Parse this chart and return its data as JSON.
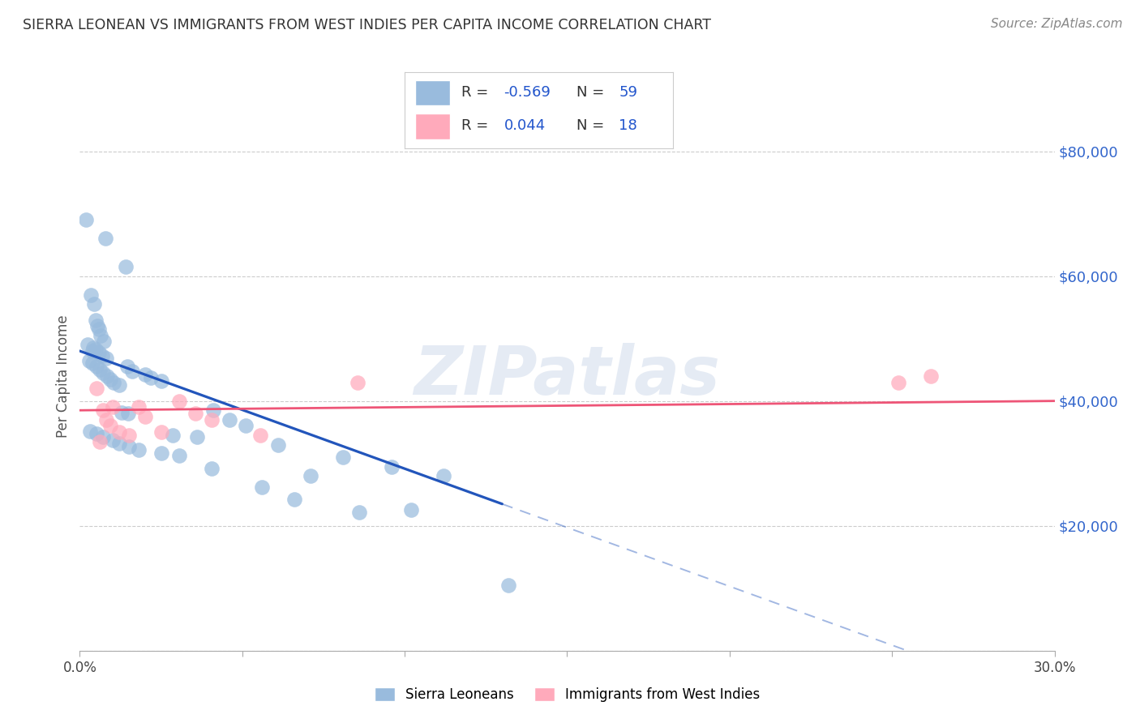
{
  "title": "SIERRA LEONEAN VS IMMIGRANTS FROM WEST INDIES PER CAPITA INCOME CORRELATION CHART",
  "source": "Source: ZipAtlas.com",
  "ylabel": "Per Capita Income",
  "xlim": [
    0.0,
    30.0
  ],
  "ylim": [
    0,
    88000
  ],
  "yticks": [
    0,
    20000,
    40000,
    60000,
    80000
  ],
  "ytick_labels": [
    "",
    "$20,000",
    "$40,000",
    "$60,000",
    "$80,000"
  ],
  "background_color": "#ffffff",
  "watermark_text": "ZIPatlas",
  "blue_color": "#99bbdd",
  "pink_color": "#ffaabb",
  "trendline_blue": "#2255bb",
  "trendline_pink": "#ee5577",
  "grid_color": "#cccccc",
  "blue_scatter_x": [
    0.2,
    0.8,
    1.4,
    0.35,
    0.45,
    0.5,
    0.55,
    0.6,
    0.65,
    0.75,
    0.25,
    0.42,
    0.48,
    0.38,
    0.58,
    0.68,
    0.82,
    0.3,
    0.4,
    0.52,
    0.62,
    0.72,
    0.85,
    0.95,
    1.05,
    1.2,
    1.45,
    1.62,
    2.02,
    2.18,
    2.52,
    1.28,
    1.48,
    2.85,
    3.6,
    4.1,
    4.6,
    5.1,
    6.1,
    7.1,
    8.1,
    9.6,
    11.2,
    0.32,
    0.52,
    0.72,
    1.02,
    1.22,
    1.52,
    1.82,
    2.52,
    3.05,
    4.05,
    5.6,
    6.6,
    8.6,
    10.2,
    13.2
  ],
  "blue_scatter_y": [
    69000,
    66000,
    61500,
    57000,
    55500,
    53000,
    52000,
    51500,
    50500,
    49500,
    49000,
    48500,
    48200,
    48000,
    47800,
    47200,
    46800,
    46500,
    46000,
    45500,
    45000,
    44500,
    44000,
    43500,
    43000,
    42500,
    45500,
    44800,
    44200,
    43700,
    43200,
    38200,
    38000,
    34500,
    34200,
    38500,
    37000,
    36000,
    33000,
    28000,
    31000,
    29500,
    28000,
    35200,
    34700,
    34200,
    33700,
    33200,
    32700,
    32200,
    31700,
    31200,
    29200,
    26200,
    24200,
    22200,
    22500,
    10500
  ],
  "pink_scatter_x": [
    0.52,
    0.72,
    0.82,
    1.02,
    1.22,
    1.52,
    1.82,
    2.02,
    2.52,
    3.05,
    3.55,
    4.05,
    5.55,
    8.55,
    25.2,
    26.2,
    0.62,
    0.95
  ],
  "pink_scatter_y": [
    42000,
    38500,
    37000,
    39000,
    35000,
    34500,
    39000,
    37500,
    35000,
    40000,
    38000,
    37000,
    34500,
    43000,
    43000,
    44000,
    33500,
    36000
  ],
  "blue_trendline_x0": 0.0,
  "blue_trendline_y0": 48000,
  "blue_trendline_x1": 13.0,
  "blue_trendline_y1": 23500,
  "blue_solid_end": 13.0,
  "blue_dashed_end": 30.0,
  "pink_trendline_y_intercept": 38500,
  "pink_trendline_slope": 50
}
